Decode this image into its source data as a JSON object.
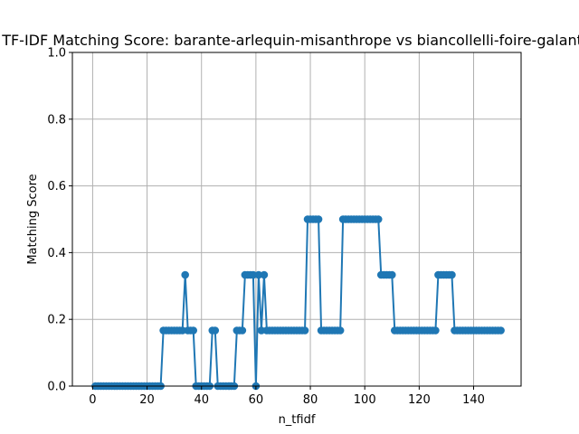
{
  "chart_data": {
    "type": "line",
    "title": "TF-IDF Matching Score: barante-arlequin-misanthrope vs biancollelli-foire-galante",
    "xlabel": "n_tfidf",
    "ylabel": "Matching Score",
    "xlim": [
      -7.45,
      157.45
    ],
    "ylim": [
      0,
      1
    ],
    "x_ticks": [
      0,
      20,
      40,
      60,
      80,
      100,
      120,
      140
    ],
    "y_ticks": [
      0.0,
      0.2,
      0.4,
      0.6,
      0.8,
      1.0
    ],
    "x_tick_labels": [
      "0",
      "20",
      "40",
      "60",
      "80",
      "100",
      "120",
      "140"
    ],
    "y_tick_labels": [
      "0.0",
      "0.2",
      "0.4",
      "0.6",
      "0.8",
      "1.0"
    ],
    "grid": true,
    "marker": "circle",
    "series": [
      {
        "color": "#1f77b4",
        "segments": [
          [
            1,
            25,
            0
          ],
          [
            26,
            33,
            0.1667
          ],
          [
            34,
            34,
            0.3333
          ],
          [
            35,
            37,
            0.1667
          ],
          [
            38,
            43,
            0
          ],
          [
            44,
            45,
            0.1667
          ],
          [
            46,
            52,
            0
          ],
          [
            53,
            55,
            0.1667
          ],
          [
            56,
            59,
            0.3333
          ],
          [
            60,
            60,
            0
          ],
          [
            61,
            61,
            0.3333
          ],
          [
            62,
            62,
            0.1667
          ],
          [
            63,
            63,
            0.3333
          ],
          [
            64,
            78,
            0.1667
          ],
          [
            79,
            83,
            0.5
          ],
          [
            84,
            91,
            0.1667
          ],
          [
            92,
            105,
            0.5
          ],
          [
            106,
            110,
            0.3333
          ],
          [
            111,
            126,
            0.1667
          ],
          [
            127,
            132,
            0.3333
          ],
          [
            133,
            150,
            0.1667
          ]
        ]
      }
    ]
  }
}
